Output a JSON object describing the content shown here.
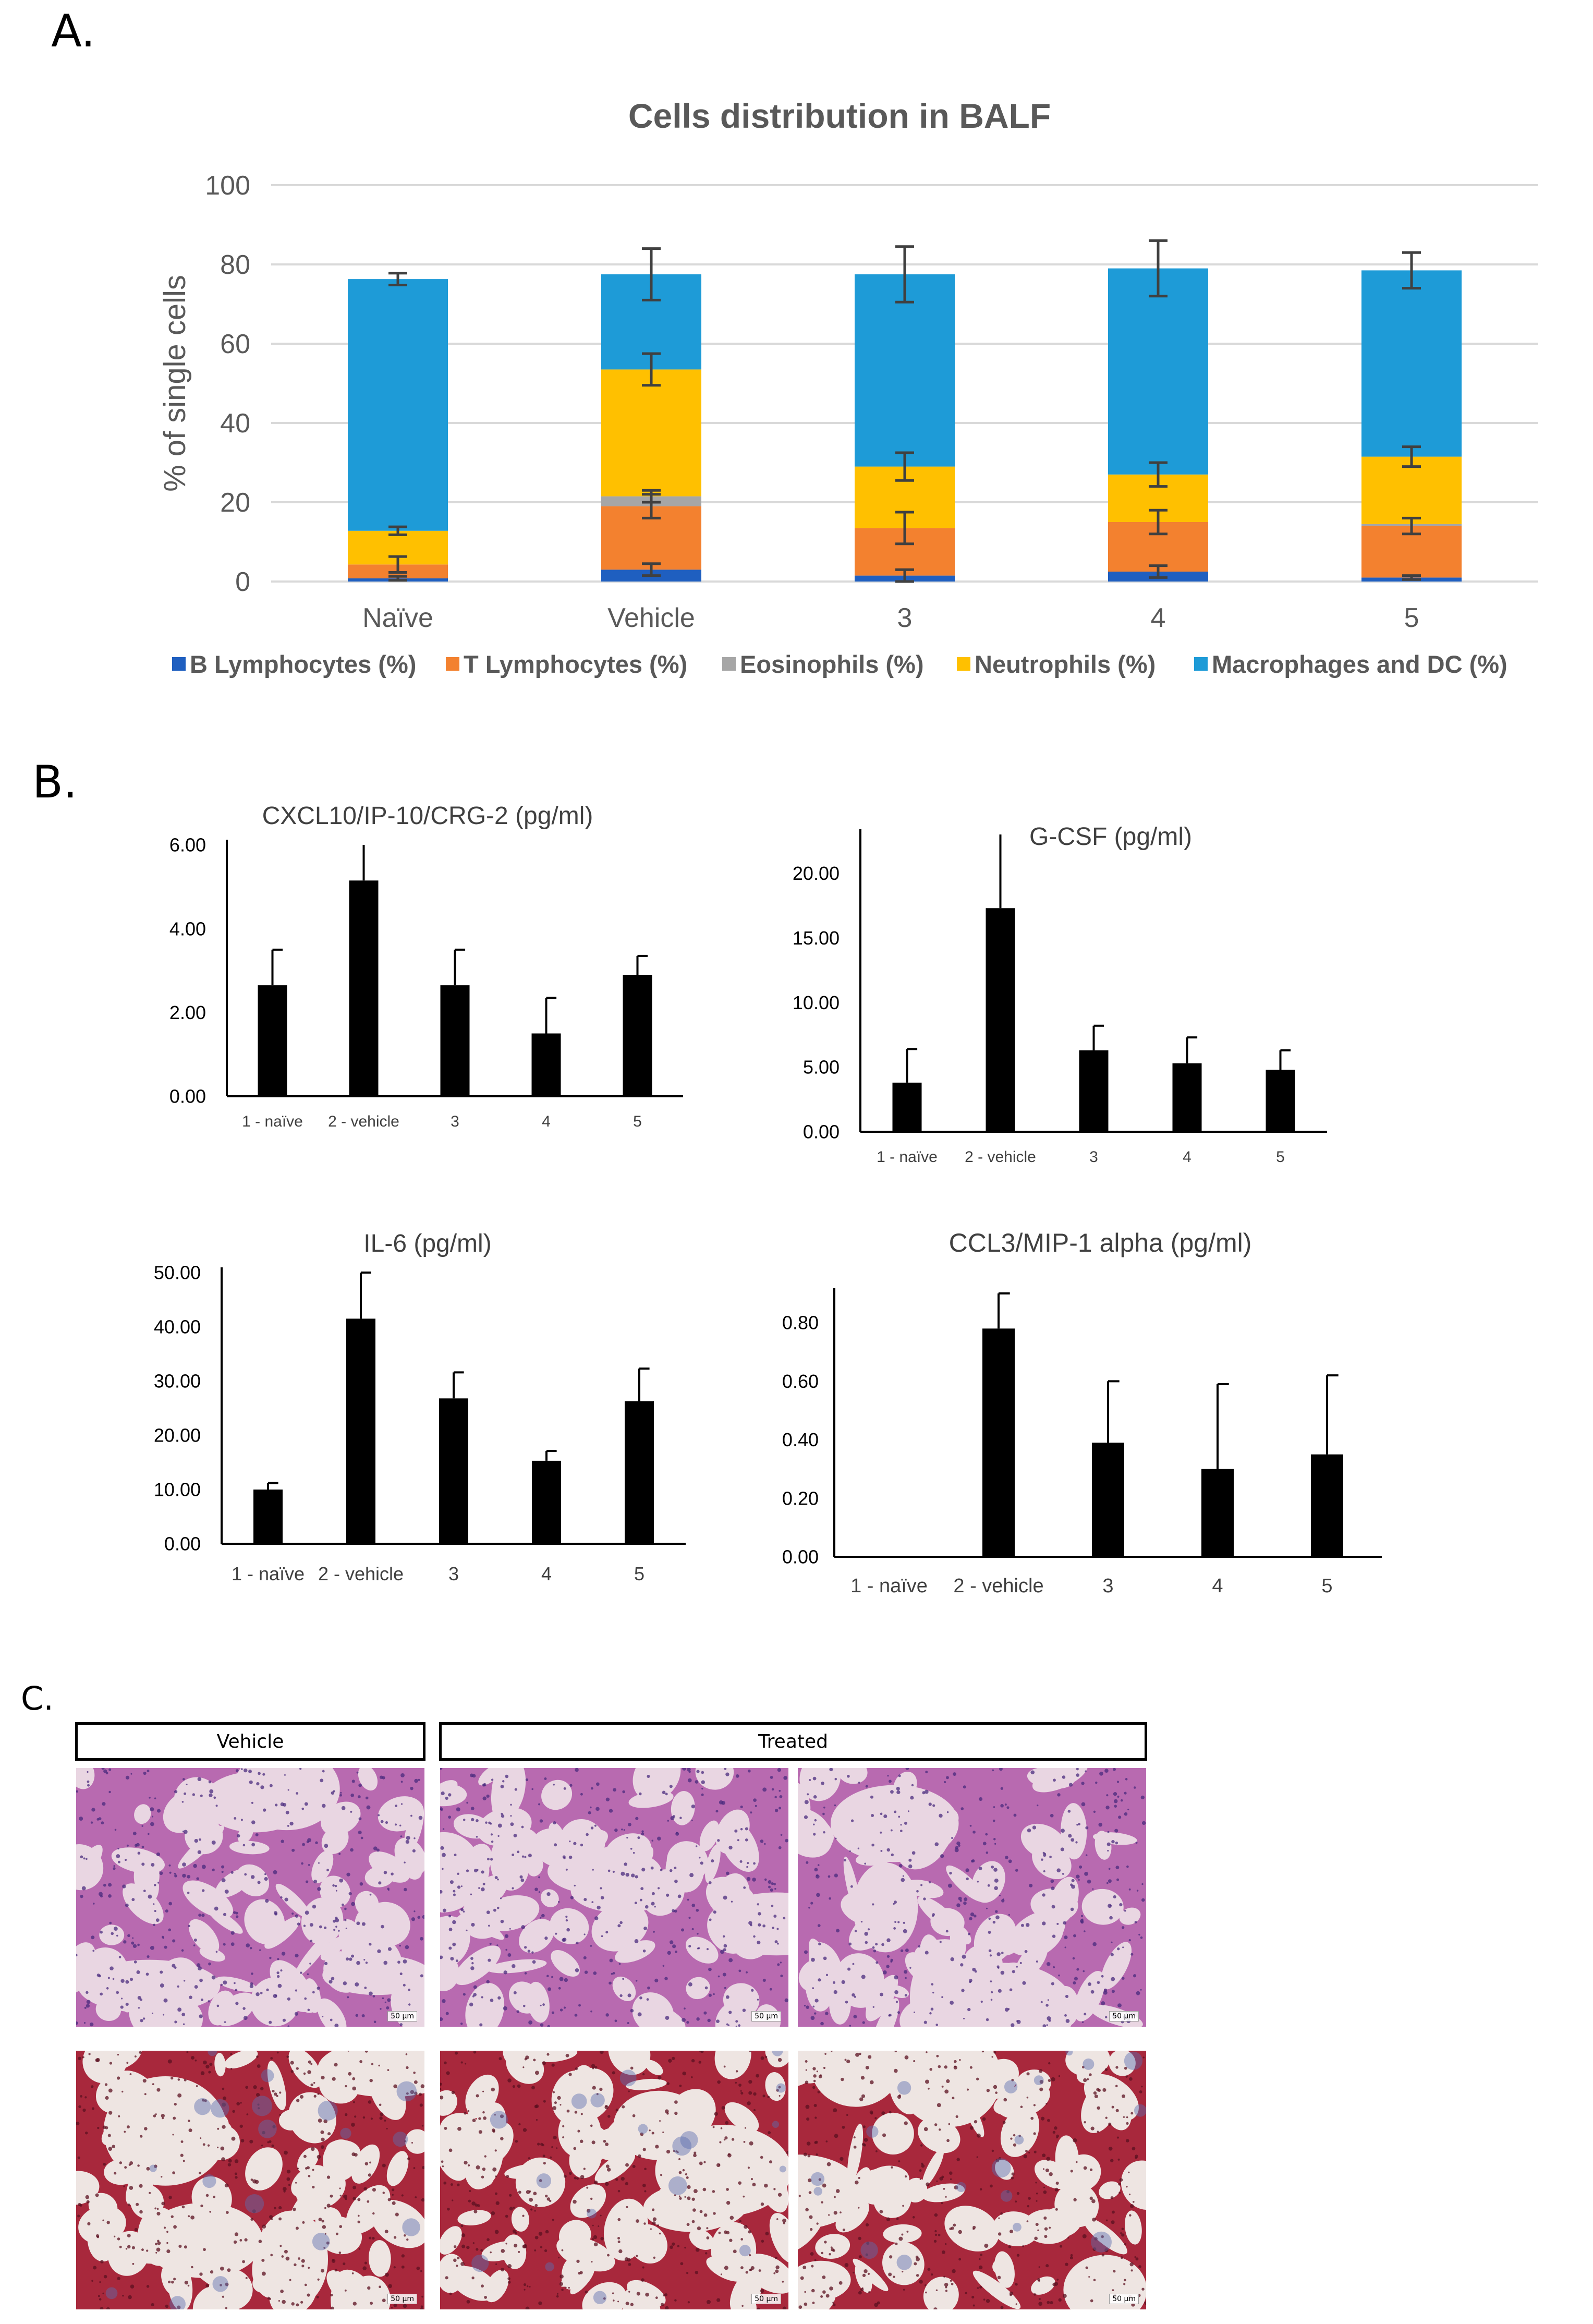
{
  "panels": {
    "a": "A.",
    "b": "B.",
    "c": "C."
  },
  "colors": {
    "b_lymph": "#1F5FC0",
    "t_lymph": "#F3812F",
    "eos": "#A6A6A6",
    "neut": "#FFC000",
    "macro": "#1E9BD7",
    "bar": "#000000",
    "he_bg": "#E9D6E2",
    "he_tissue": "#B86AB0",
    "he_nuclei": "#4A2B7E",
    "mt_bg": "#EEE5E2",
    "mt_tissue": "#A8283C",
    "mt_blue": "#5A6DB0"
  },
  "chart_data": [
    {
      "type": "bar",
      "stacked": true,
      "title": "Cells distribution in BALF",
      "ylabel": "% of single cells",
      "xlabel": "",
      "ylim": [
        0,
        100
      ],
      "yticks": [
        "0",
        "20",
        "40",
        "60",
        "80",
        "100"
      ],
      "grid": true,
      "legend_position": "bottom",
      "categories": [
        "Naïve",
        "Vehicle",
        "3",
        "4",
        "5"
      ],
      "series": [
        {
          "name": "B Lymphocytes (%)",
          "color_key": "b_lymph",
          "values": [
            0.8,
            3,
            1.5,
            2.5,
            1
          ],
          "errors": [
            0.5,
            1.5,
            1.5,
            1.5,
            0.5
          ]
        },
        {
          "name": "T Lymphocytes (%)",
          "color_key": "t_lymph",
          "values": [
            3.5,
            16,
            12,
            12.5,
            13
          ],
          "errors": [
            2,
            3,
            4,
            3,
            2
          ]
        },
        {
          "name": "Eosinophils (%)",
          "color_key": "eos",
          "values": [
            0,
            2.5,
            0,
            0,
            0.5
          ],
          "errors": [
            0,
            1.5,
            0,
            0,
            0
          ]
        },
        {
          "name": "Neutrophils (%)",
          "color_key": "neut",
          "values": [
            8.5,
            32,
            15.5,
            12,
            17
          ],
          "errors": [
            1,
            4,
            3.5,
            3,
            2.5
          ]
        },
        {
          "name": "Macrophages and DC (%)",
          "color_key": "macro",
          "values": [
            63.5,
            24,
            48.5,
            52,
            47
          ],
          "errors": [
            1.5,
            6.5,
            7,
            7,
            4.5
          ]
        }
      ]
    },
    {
      "type": "bar",
      "title": "CXCL10/IP-10/CRG-2",
      "unit": "(pg/ml)",
      "categories": [
        "1 - naïve",
        "2 - vehicle",
        "3",
        "4",
        "5"
      ],
      "values": [
        2.65,
        5.15,
        2.65,
        1.5,
        2.9
      ],
      "errors": [
        0.85,
        0.9,
        0.85,
        0.85,
        0.45
      ],
      "ylim": [
        0,
        6
      ],
      "yticks": [
        "0.00",
        "2.00",
        "4.00",
        "6.00"
      ]
    },
    {
      "type": "bar",
      "title": "G-CSF",
      "unit": "(pg/ml)",
      "categories": [
        "1 - naïve",
        "2 - vehicle",
        "3",
        "4",
        "5"
      ],
      "values": [
        3.8,
        17.3,
        6.3,
        5.3,
        4.8
      ],
      "errors": [
        2.6,
        6,
        1.9,
        2,
        1.5
      ],
      "ylim": [
        0,
        23
      ],
      "yticks": [
        "0.00",
        "5.00",
        "10.00",
        "15.00",
        "20.00"
      ]
    },
    {
      "type": "bar",
      "title": "IL-6",
      "unit": "(pg/ml)",
      "categories": [
        "1 - naïve",
        "2 - vehicle",
        "3",
        "4",
        "5"
      ],
      "values": [
        10,
        41.5,
        26.8,
        15.3,
        26.3
      ],
      "errors": [
        1.2,
        8.5,
        4.8,
        1.8,
        6
      ],
      "ylim": [
        0,
        50
      ],
      "yticks": [
        "0.00",
        "10.00",
        "20.00",
        "30.00",
        "40.00",
        "50.00"
      ]
    },
    {
      "type": "bar",
      "title": "CCL3/MIP-1 alpha (pg/ml)",
      "unit": "",
      "categories": [
        "1 - naïve",
        "2 - vehicle",
        "3",
        "4",
        "5"
      ],
      "values": [
        0,
        0.78,
        0.39,
        0.3,
        0.35
      ],
      "errors": [
        0,
        0.12,
        0.21,
        0.29,
        0.27
      ],
      "ylim": [
        0,
        0.9
      ],
      "yticks": [
        "0.00",
        "0.20",
        "0.40",
        "0.60",
        "0.80"
      ]
    }
  ],
  "histology": {
    "header_vehicle": "Vehicle",
    "header_treated": "Treated",
    "scale_bar": "50 µm"
  }
}
